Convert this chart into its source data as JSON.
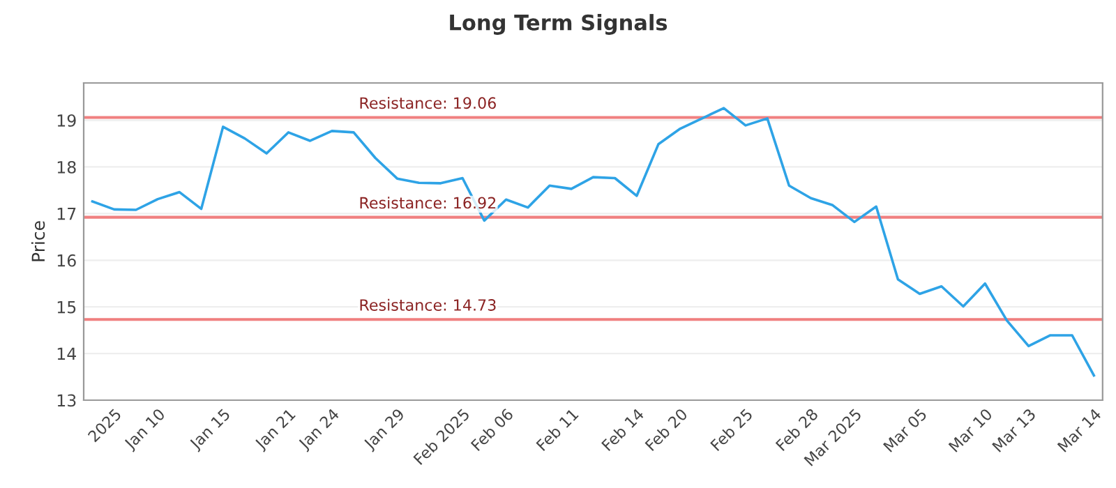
{
  "chart_data": {
    "type": "line",
    "title": "Long Term Signals",
    "ylabel": "Price",
    "categories": [
      null,
      "2025",
      null,
      "Jan 10",
      null,
      null,
      "Jan 15",
      null,
      null,
      "Jan 21",
      null,
      "Jan 24",
      null,
      null,
      "Jan 29",
      null,
      null,
      "Feb 2025",
      null,
      "Feb 06",
      null,
      null,
      "Feb 11",
      null,
      null,
      "Feb 14",
      null,
      "Feb 20",
      null,
      null,
      "Feb 25",
      null,
      null,
      "Feb 28",
      null,
      "Mar 2025",
      null,
      null,
      "Mar 05",
      null,
      null,
      "Mar 10",
      null,
      "Mar 13",
      null,
      null,
      "Mar 14"
    ],
    "series": [
      {
        "color": "#2ea3e6",
        "values": [
          17.26,
          17.09,
          17.08,
          17.31,
          17.46,
          17.1,
          18.86,
          18.61,
          18.29,
          18.74,
          18.56,
          18.77,
          18.74,
          18.19,
          17.75,
          17.66,
          17.65,
          17.76,
          16.85,
          17.3,
          17.13,
          17.6,
          17.53,
          17.78,
          17.76,
          17.38,
          18.49,
          18.82,
          19.04,
          19.26,
          18.89,
          19.04,
          17.6,
          17.33,
          17.18,
          16.82,
          17.15,
          15.59,
          15.28,
          15.44,
          15.01,
          15.5,
          14.71,
          14.16,
          14.39,
          14.39,
          13.53
        ]
      }
    ],
    "ylim": [
      13,
      19.8
    ],
    "yticks": [
      13,
      14,
      15,
      16,
      17,
      18,
      19
    ],
    "grid": "y",
    "marker": "none",
    "line_style": "solid",
    "ref_lines": [
      {
        "axis": "y",
        "value": 19.06,
        "label": "Resistance: 19.06",
        "color": "#f08080"
      },
      {
        "axis": "y",
        "value": 16.92,
        "label": "Resistance: 16.92",
        "color": "#f08080"
      },
      {
        "axis": "y",
        "value": 14.73,
        "label": "Resistance: 14.73",
        "color": "#f08080"
      }
    ]
  }
}
